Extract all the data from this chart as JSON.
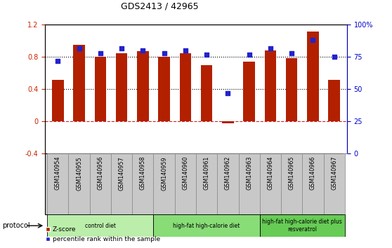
{
  "title": "GDS2413 / 42965",
  "samples": [
    "GSM140954",
    "GSM140955",
    "GSM140956",
    "GSM140957",
    "GSM140958",
    "GSM140959",
    "GSM140960",
    "GSM140961",
    "GSM140962",
    "GSM140963",
    "GSM140964",
    "GSM140965",
    "GSM140966",
    "GSM140967"
  ],
  "z_scores": [
    0.52,
    0.95,
    0.8,
    0.85,
    0.87,
    0.8,
    0.85,
    0.7,
    -0.02,
    0.74,
    0.88,
    0.79,
    1.12,
    0.52
  ],
  "percentile_ranks": [
    72,
    82,
    78,
    82,
    80,
    78,
    80,
    77,
    47,
    77,
    82,
    78,
    88,
    75
  ],
  "bar_color": "#B22000",
  "dot_color": "#2222CC",
  "ylim_left": [
    -0.4,
    1.2
  ],
  "ylim_right": [
    0,
    100
  ],
  "yticks_left": [
    -0.4,
    0.0,
    0.4,
    0.8,
    1.2
  ],
  "ytick_labels_left": [
    "-0.4",
    "0",
    "0.4",
    "0.8",
    "1.2"
  ],
  "yticks_right": [
    0,
    25,
    50,
    75,
    100
  ],
  "ytick_labels_right": [
    "0",
    "25",
    "50",
    "75",
    "100%"
  ],
  "hlines_dotted": [
    0.4,
    0.8
  ],
  "zero_line_color": "#CC2222",
  "groups": [
    {
      "label": "control diet",
      "start": 0,
      "end": 4,
      "color": "#BBEEAA"
    },
    {
      "label": "high-fat high-calorie diet",
      "start": 5,
      "end": 9,
      "color": "#88DD77"
    },
    {
      "label": "high-fat high-calorie diet plus\nresveratrol",
      "start": 10,
      "end": 13,
      "color": "#66CC55"
    }
  ],
  "protocol_label": "protocol",
  "legend_zscore": "Z-score",
  "legend_percentile": "percentile rank within the sample",
  "background_color": "#ffffff",
  "tick_label_color_left": "#CC2200",
  "tick_label_color_right": "#0000CC",
  "label_bg_color": "#C8C8C8",
  "label_border_color": "#888888"
}
